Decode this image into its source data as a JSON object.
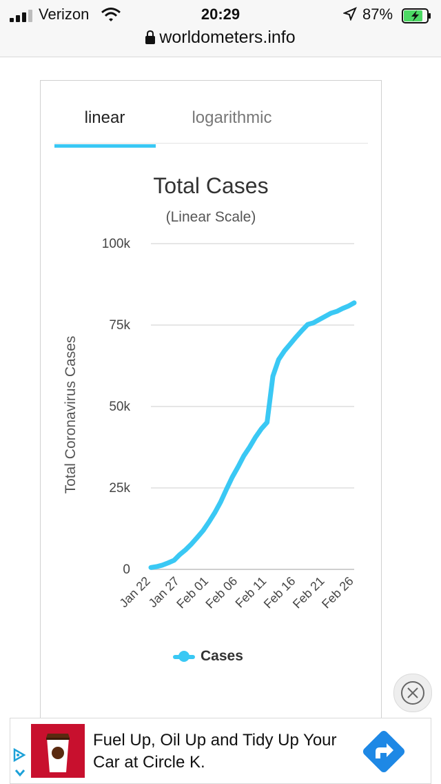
{
  "status_bar": {
    "carrier": "Verizon",
    "time": "20:29",
    "battery_percent": "87%",
    "battery_level": 0.87,
    "url": "worldometers.info"
  },
  "tabs": [
    {
      "label": "linear",
      "active": true
    },
    {
      "label": "logarithmic",
      "active": false
    }
  ],
  "chart_data": {
    "type": "line",
    "title": "Total Cases",
    "subtitle": "(Linear Scale)",
    "ylabel": "Total Coronavirus Cases",
    "xlabel": "",
    "ylim": [
      0,
      100000
    ],
    "y_ticks": [
      0,
      25000,
      50000,
      75000,
      100000
    ],
    "y_tick_labels": [
      "0",
      "25k",
      "50k",
      "75k",
      "100k"
    ],
    "x_tick_labels": [
      "Jan 22",
      "Jan 27",
      "Feb 01",
      "Feb 06",
      "Feb 11",
      "Feb 16",
      "Feb 21",
      "Feb 26"
    ],
    "x_tick_indices": [
      0,
      5,
      10,
      15,
      20,
      25,
      30,
      35
    ],
    "grid": true,
    "legend": "bottom",
    "color": "#3ac8f4",
    "series": [
      {
        "name": "Cases",
        "x": [
          "Jan 22",
          "Jan 23",
          "Jan 24",
          "Jan 25",
          "Jan 26",
          "Jan 27",
          "Jan 28",
          "Jan 29",
          "Jan 30",
          "Jan 31",
          "Feb 01",
          "Feb 02",
          "Feb 03",
          "Feb 04",
          "Feb 05",
          "Feb 06",
          "Feb 07",
          "Feb 08",
          "Feb 09",
          "Feb 10",
          "Feb 11",
          "Feb 12",
          "Feb 13",
          "Feb 14",
          "Feb 15",
          "Feb 16",
          "Feb 17",
          "Feb 18",
          "Feb 19",
          "Feb 20",
          "Feb 21",
          "Feb 22",
          "Feb 23",
          "Feb 24",
          "Feb 25",
          "Feb 26"
        ],
        "values": [
          580,
          845,
          1317,
          2015,
          2800,
          4581,
          6058,
          7813,
          9823,
          11948,
          14551,
          17389,
          20628,
          24553,
          28276,
          31439,
          34876,
          37552,
          40553,
          43099,
          45134,
          59287,
          64438,
          67100,
          69197,
          71329,
          73332,
          75184,
          75700,
          76677,
          77673,
          78651,
          79205,
          80087,
          80828,
          81820
        ]
      }
    ]
  },
  "close_icon": "close-icon",
  "ad": {
    "text": "Fuel Up, Oil Up and Tidy Up Your Car at Circle K."
  }
}
